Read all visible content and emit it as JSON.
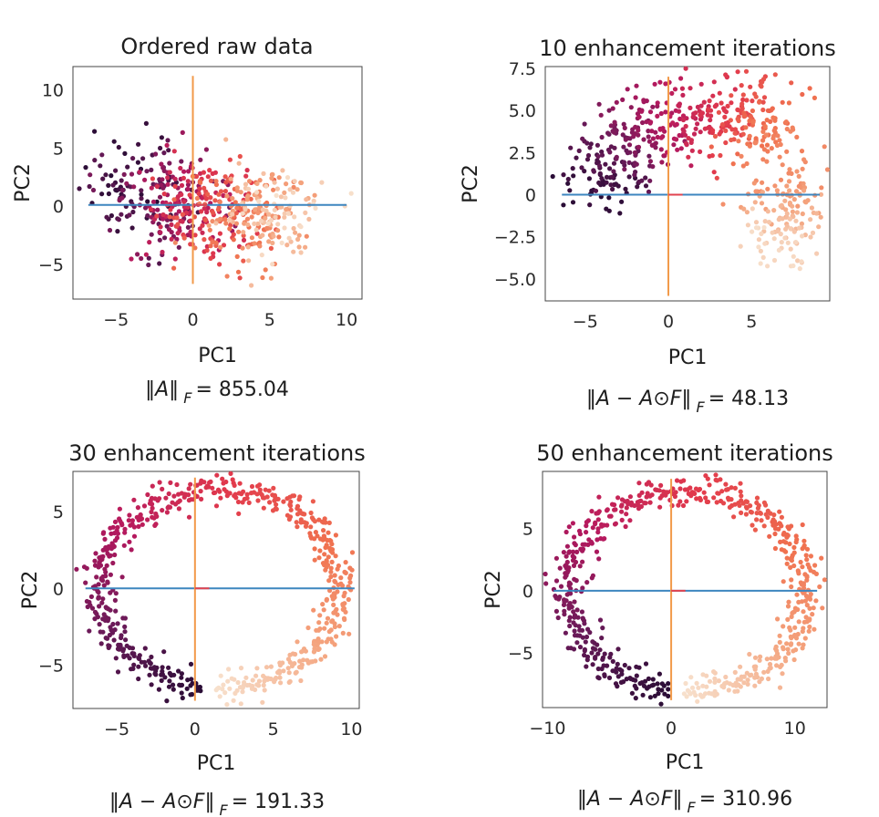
{
  "chart_data": [
    {
      "type": "scatter",
      "title": "Ordered raw data",
      "xlabel": "PC1",
      "ylabel": "PC2",
      "xlim": [
        -7.8,
        11
      ],
      "ylim": [
        -8,
        12
      ],
      "xticks": [
        -5,
        0,
        5,
        10
      ],
      "yticks": [
        -5,
        0,
        5,
        10
      ],
      "xtick_labels": [
        "−5",
        "0",
        "5",
        "10"
      ],
      "ytick_labels": [
        "−5",
        "0",
        "5",
        "10"
      ],
      "caption": {
        "formula": "‖A‖",
        "sub": "F",
        "value": "= 855.04"
      },
      "shape": "blob",
      "n_points": 600,
      "h_axis": {
        "x": [
          -6.8,
          10
        ],
        "y": 0.1
      },
      "v_axis": {
        "x": 0,
        "y": [
          -6.7,
          11.2
        ]
      },
      "colormap": [
        "#2a0d36",
        "#6b1a59",
        "#b5195e",
        "#e23a4c",
        "#f0714f",
        "#f4a27c",
        "#f7e0cc"
      ]
    },
    {
      "type": "scatter",
      "title": "10 enhancement iterations",
      "xlabel": "PC1",
      "ylabel": "PC2",
      "xlim": [
        -7.4,
        9.7
      ],
      "ylim": [
        -6.3,
        7.6
      ],
      "xticks": [
        -5,
        0,
        5
      ],
      "yticks": [
        -5,
        -2.5,
        0,
        2.5,
        5,
        7.5
      ],
      "xtick_labels": [
        "−5",
        "0",
        "5"
      ],
      "ytick_labels": [
        "−5.0",
        "−2.5",
        "0",
        "2.5",
        "5.0",
        "7.5"
      ],
      "caption": {
        "formula": "‖A − A⊙F‖",
        "sub": "F",
        "value": "= 48.13"
      },
      "shape": "arch",
      "n_points": 600,
      "h_axis": {
        "x": [
          -6.4,
          9.1
        ],
        "y": 0
      },
      "v_axis": {
        "x": 0,
        "y": [
          -6,
          7
        ]
      },
      "colormap": [
        "#2a0d36",
        "#6b1a59",
        "#b5195e",
        "#e23a4c",
        "#f0714f",
        "#f4a27c",
        "#f7e0cc"
      ]
    },
    {
      "type": "scatter",
      "title": "30 enhancement iterations",
      "xlabel": "PC1",
      "ylabel": "PC2",
      "xlim": [
        -7.8,
        10.5
      ],
      "ylim": [
        -7.8,
        7.6
      ],
      "xticks": [
        -5,
        0,
        5,
        10
      ],
      "yticks": [
        -5,
        0,
        5
      ],
      "xtick_labels": [
        "−5",
        "0",
        "5",
        "10"
      ],
      "ytick_labels": [
        "−5",
        "0",
        "5"
      ],
      "caption": {
        "formula": "‖A − A⊙F‖",
        "sub": "F",
        "value": "= 191.33"
      },
      "shape": "ring",
      "n_points": 620,
      "h_axis": {
        "x": [
          -7,
          10.2
        ],
        "y": 0
      },
      "v_axis": {
        "x": 0,
        "y": [
          -7.3,
          7.2
        ]
      },
      "colormap": [
        "#2a0d36",
        "#6b1a59",
        "#b5195e",
        "#e23a4c",
        "#f0714f",
        "#f4a27c",
        "#f7e0cc"
      ]
    },
    {
      "type": "scatter",
      "title": "50 enhancement iterations",
      "xlabel": "PC1",
      "ylabel": "PC2",
      "xlim": [
        -10.4,
        12.6
      ],
      "ylim": [
        -9.4,
        9.6
      ],
      "xticks": [
        -10,
        0,
        10
      ],
      "yticks": [
        -5,
        0,
        5
      ],
      "xtick_labels": [
        "−10",
        "0",
        "10"
      ],
      "ytick_labels": [
        "−5",
        "0",
        "5"
      ],
      "caption": {
        "formula": "‖A − A⊙F‖",
        "sub": "F",
        "value": "= 310.96"
      },
      "shape": "ring",
      "n_points": 620,
      "h_axis": {
        "x": [
          -9.5,
          11.8
        ],
        "y": 0
      },
      "v_axis": {
        "x": 0,
        "y": [
          -8.8,
          9
        ]
      },
      "colormap": [
        "#2a0d36",
        "#6b1a59",
        "#b5195e",
        "#e23a4c",
        "#f0714f",
        "#f4a27c",
        "#f7e0cc"
      ]
    }
  ],
  "colors": {
    "h_axis_line": "#3d86bf",
    "v_axis_line": "#f29a4a",
    "center_mark": "#e2434f",
    "frame": "#444444"
  }
}
